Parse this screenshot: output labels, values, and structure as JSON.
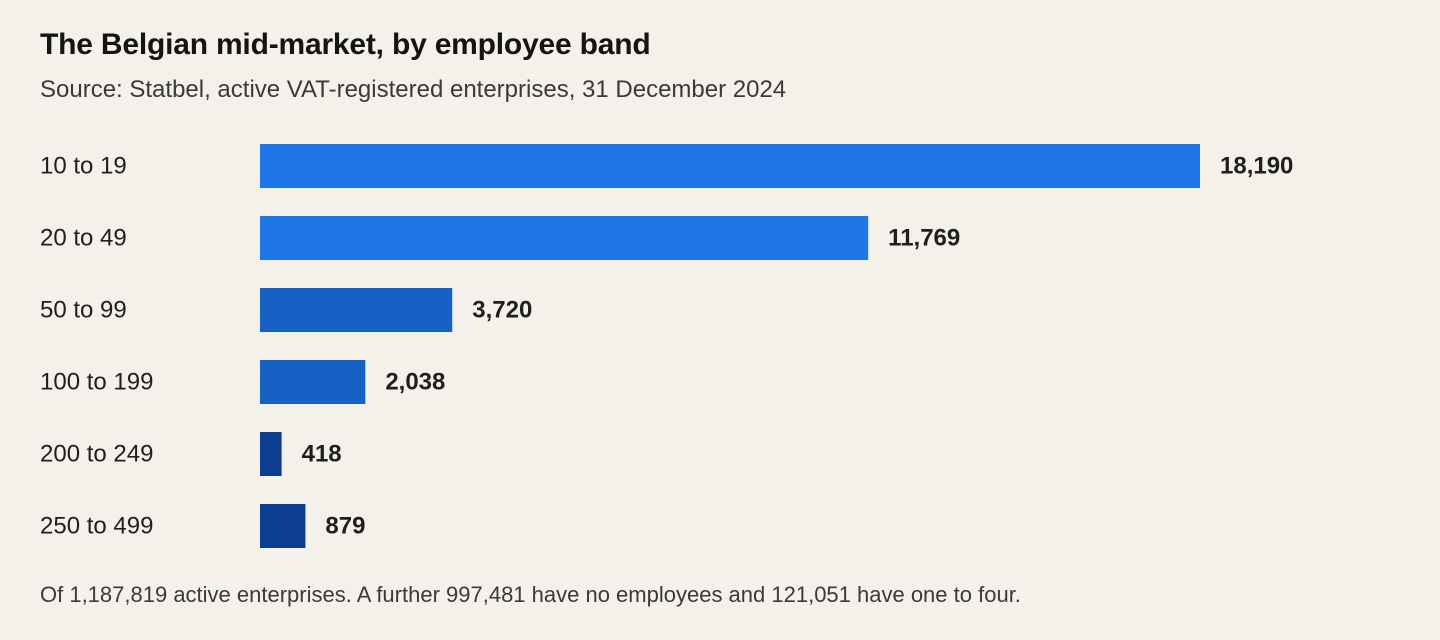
{
  "chart_data": {
    "type": "bar",
    "orientation": "horizontal",
    "title": "The Belgian mid-market, by employee band",
    "subtitle": "Source: Statbel, active VAT-registered enterprises, 31 December 2024",
    "categories": [
      "10 to 19",
      "20 to 49",
      "50 to 99",
      "100 to 199",
      "200 to 249",
      "250 to 499"
    ],
    "values": [
      18190,
      11769,
      3720,
      2038,
      418,
      879
    ],
    "value_labels": [
      "18,190",
      "11,769",
      "3,720",
      "2,038",
      "418",
      "879"
    ],
    "bar_colors": [
      "#1f76e6",
      "#1f76e6",
      "#1760c4",
      "#1760c4",
      "#0d3d91",
      "#0d3d91"
    ],
    "xlabel": "",
    "ylabel": "",
    "xlim": [
      0,
      18190
    ],
    "grid": false,
    "legend": "none",
    "footnote": "Of 1,187,819 active enterprises. A further 997,481 have no employees and 121,051 have one to four."
  }
}
